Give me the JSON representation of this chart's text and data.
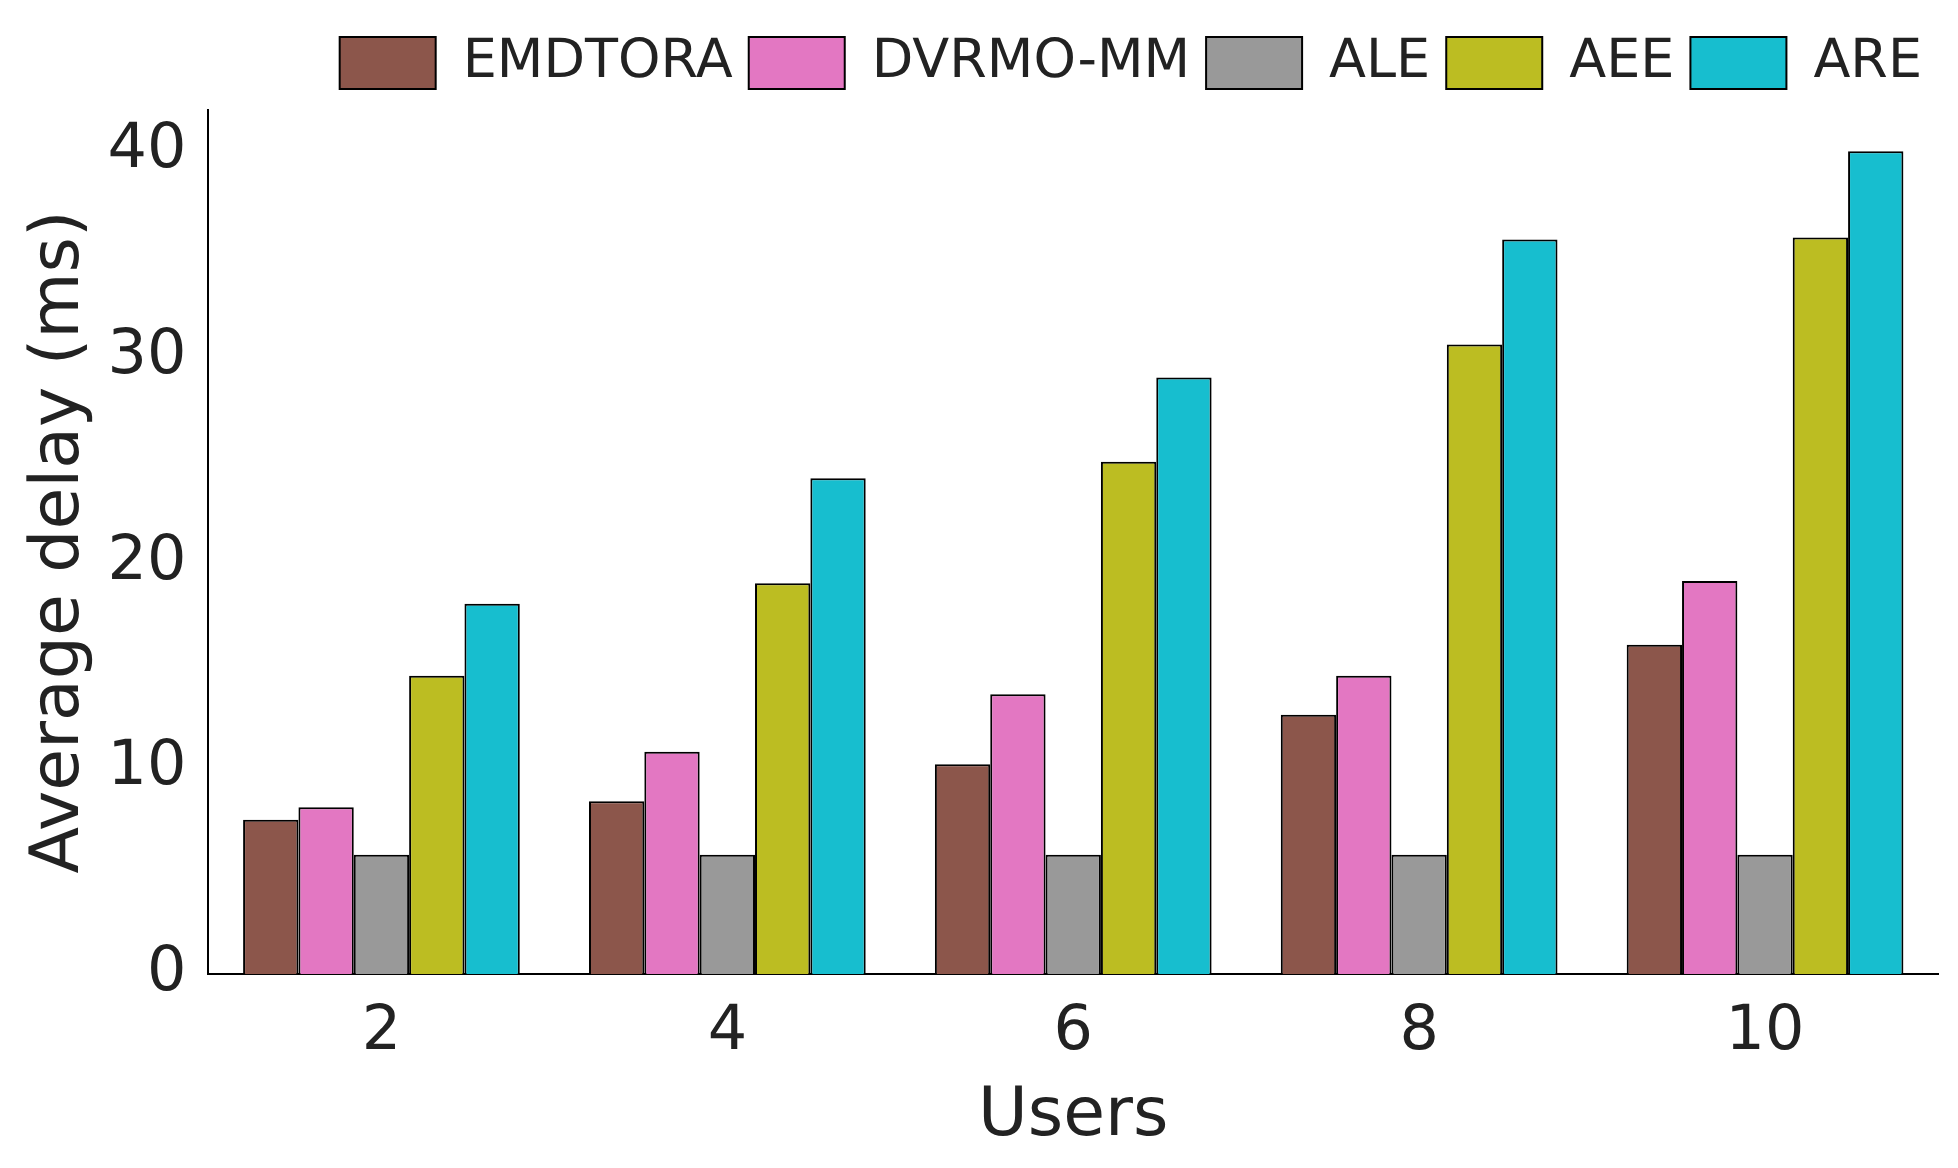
{
  "chart_data": {
    "type": "bar",
    "xlabel": "Users",
    "ylabel": "Average delay (ms)",
    "categories": [
      "2",
      "4",
      "6",
      "8",
      "10"
    ],
    "series": [
      {
        "name": "EMDTORA",
        "color": "#8c564b",
        "values": [
          7.5,
          8.4,
          10.2,
          12.6,
          16.0
        ]
      },
      {
        "name": "DVRMO-MM",
        "color": "#e377c2",
        "values": [
          8.1,
          10.8,
          13.6,
          14.5,
          19.1
        ]
      },
      {
        "name": "ALE",
        "color": "#999999",
        "values": [
          5.8,
          5.8,
          5.8,
          5.8,
          5.8
        ]
      },
      {
        "name": "AEE",
        "color": "#bcbd22",
        "values": [
          14.5,
          19.0,
          24.9,
          30.6,
          35.8
        ]
      },
      {
        "name": "ARE",
        "color": "#17becf",
        "values": [
          18.0,
          24.1,
          29.0,
          35.7,
          40.0
        ]
      }
    ],
    "ylim": [
      0,
      42
    ],
    "yticks": [
      0,
      10,
      20,
      30,
      40
    ],
    "grid": false,
    "legend": "top"
  }
}
